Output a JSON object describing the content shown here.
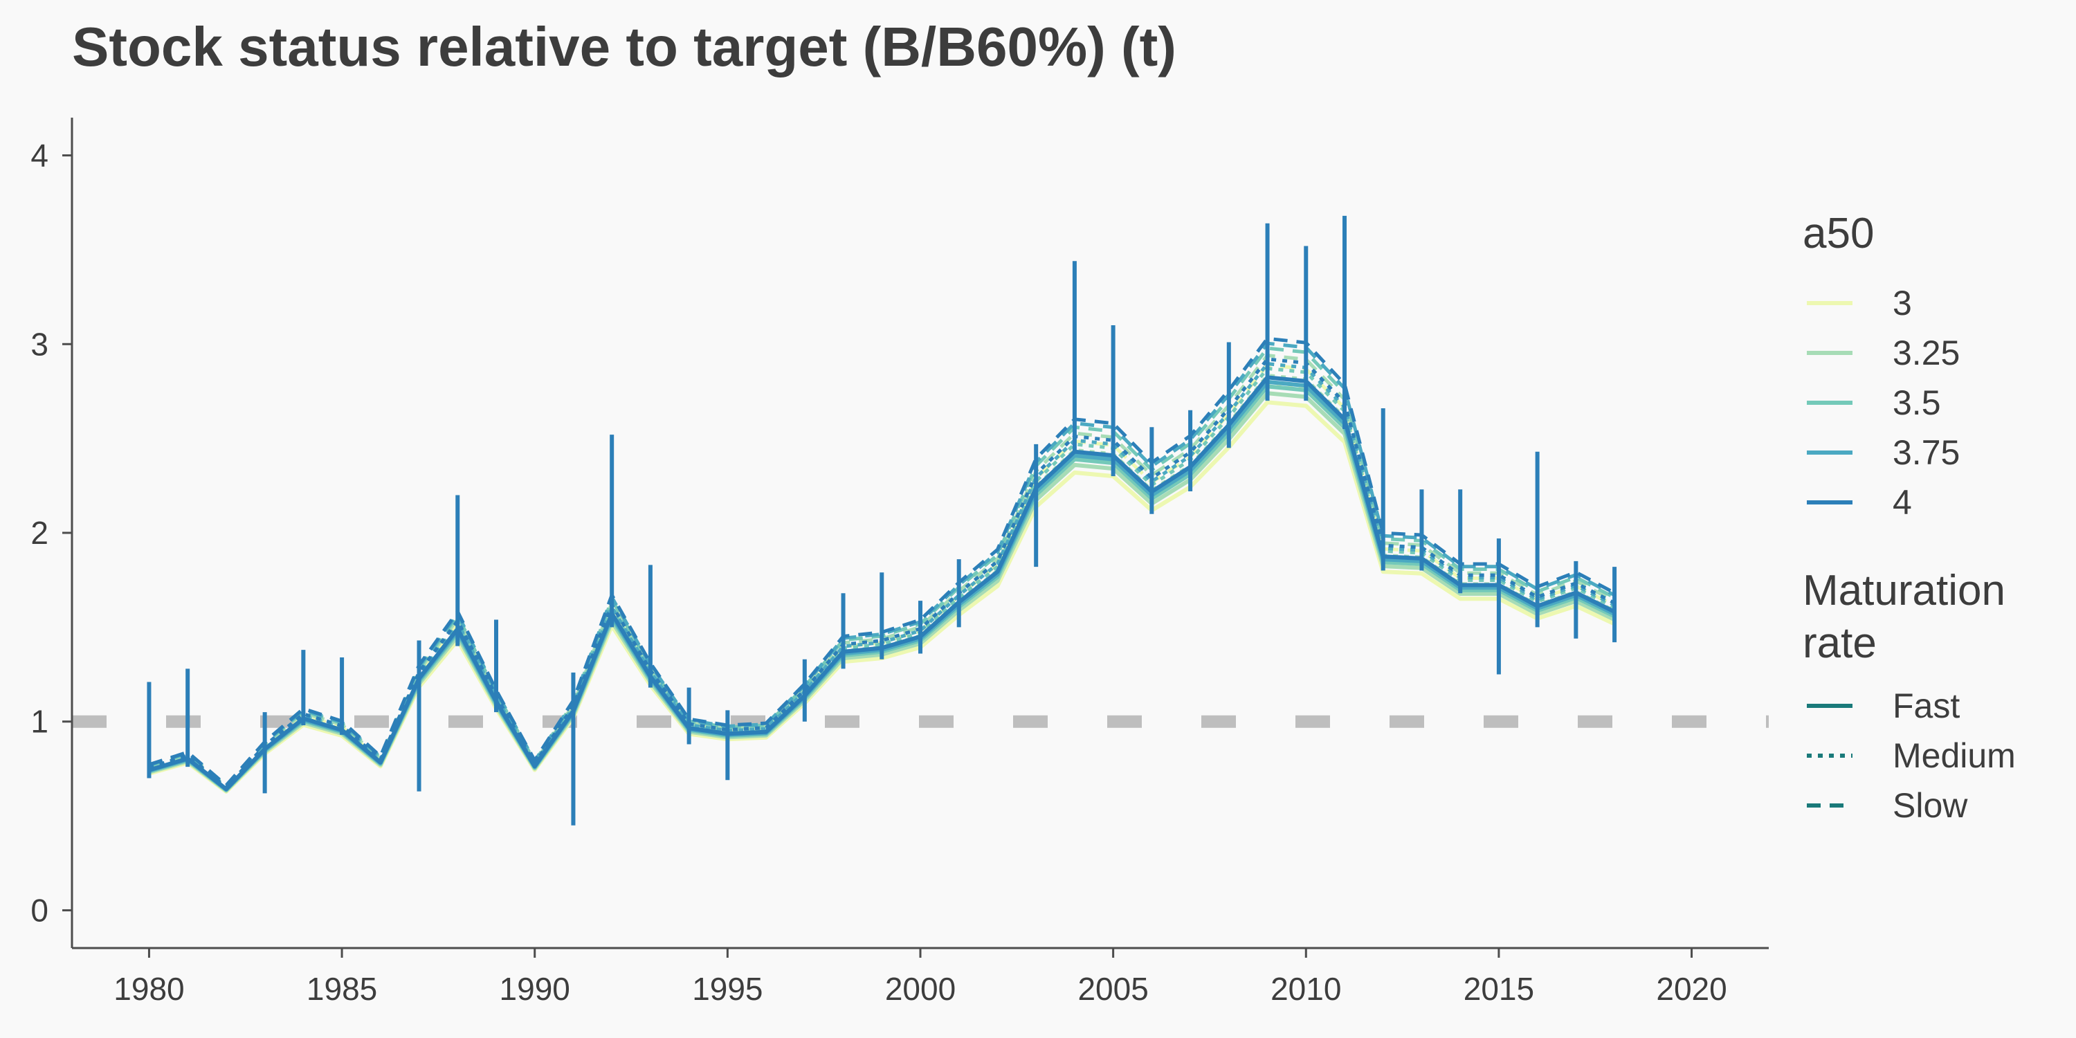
{
  "chart_data": {
    "type": "line",
    "title": "Stock status relative to target (B/B60%) (t)",
    "xlabel": "",
    "ylabel": "",
    "xlim": [
      1978,
      2022
    ],
    "ylim": [
      -0.2,
      4.2
    ],
    "x_ticks": [
      1980,
      1985,
      1990,
      1995,
      2000,
      2005,
      2010,
      2015,
      2020
    ],
    "y_ticks": [
      0,
      1,
      2,
      3,
      4
    ],
    "grid": false,
    "legend_position": "right",
    "reference_line": {
      "y": 1,
      "style": "dashed",
      "color": "#bebebe"
    },
    "x": [
      1980,
      1981,
      1982,
      1983,
      1984,
      1985,
      1986,
      1987,
      1988,
      1989,
      1990,
      1991,
      1992,
      1993,
      1994,
      1995,
      1996,
      1997,
      1998,
      1999,
      2000,
      2001,
      2002,
      2003,
      2004,
      2005,
      2006,
      2007,
      2008,
      2009,
      2010,
      2011,
      2012,
      2013,
      2014,
      2015,
      2016,
      2017,
      2018
    ],
    "base": [
      0.74,
      0.8,
      0.64,
      0.85,
      1.01,
      0.95,
      0.78,
      1.22,
      1.48,
      1.1,
      0.76,
      1.05,
      1.56,
      1.23,
      0.96,
      0.93,
      0.94,
      1.13,
      1.36,
      1.38,
      1.44,
      1.62,
      1.78,
      2.22,
      2.41,
      2.39,
      2.2,
      2.33,
      2.55,
      2.8,
      2.78,
      2.58,
      1.86,
      1.85,
      1.71,
      1.71,
      1.6,
      1.67,
      1.57
    ],
    "spikes": [
      {
        "x": 1980,
        "low": 0.7,
        "high": 1.21
      },
      {
        "x": 1981,
        "low": 0.76,
        "high": 1.28
      },
      {
        "x": 1983,
        "low": 0.62,
        "high": 1.05
      },
      {
        "x": 1984,
        "low": 0.98,
        "high": 1.38
      },
      {
        "x": 1985,
        "low": 0.93,
        "high": 1.34
      },
      {
        "x": 1987,
        "low": 0.63,
        "high": 1.43
      },
      {
        "x": 1988,
        "low": 1.4,
        "high": 2.2
      },
      {
        "x": 1989,
        "low": 1.05,
        "high": 1.54
      },
      {
        "x": 1991,
        "low": 0.45,
        "high": 1.26
      },
      {
        "x": 1992,
        "low": 1.5,
        "high": 2.52
      },
      {
        "x": 1993,
        "low": 1.18,
        "high": 1.83
      },
      {
        "x": 1994,
        "low": 0.88,
        "high": 1.18
      },
      {
        "x": 1995,
        "low": 0.69,
        "high": 1.06
      },
      {
        "x": 1997,
        "low": 1.0,
        "high": 1.33
      },
      {
        "x": 1998,
        "low": 1.28,
        "high": 1.68
      },
      {
        "x": 1999,
        "low": 1.33,
        "high": 1.79
      },
      {
        "x": 2000,
        "low": 1.36,
        "high": 1.64
      },
      {
        "x": 2001,
        "low": 1.5,
        "high": 1.86
      },
      {
        "x": 2003,
        "low": 1.82,
        "high": 2.47
      },
      {
        "x": 2004,
        "low": 2.42,
        "high": 3.44
      },
      {
        "x": 2005,
        "low": 2.3,
        "high": 3.1
      },
      {
        "x": 2006,
        "low": 2.1,
        "high": 2.56
      },
      {
        "x": 2007,
        "low": 2.22,
        "high": 2.65
      },
      {
        "x": 2008,
        "low": 2.45,
        "high": 3.01
      },
      {
        "x": 2009,
        "low": 2.7,
        "high": 3.64
      },
      {
        "x": 2010,
        "low": 2.7,
        "high": 3.52
      },
      {
        "x": 2011,
        "low": 2.55,
        "high": 3.68
      },
      {
        "x": 2012,
        "low": 1.8,
        "high": 2.66
      },
      {
        "x": 2013,
        "low": 1.8,
        "high": 2.23
      },
      {
        "x": 2014,
        "low": 1.68,
        "high": 2.23
      },
      {
        "x": 2015,
        "low": 1.25,
        "high": 1.97
      },
      {
        "x": 2016,
        "low": 1.5,
        "high": 2.43
      },
      {
        "x": 2017,
        "low": 1.44,
        "high": 1.85
      },
      {
        "x": 2018,
        "low": 1.42,
        "high": 1.82
      }
    ],
    "a50_levels": [
      {
        "value": "3",
        "color": "#edf8b1",
        "scale": 0.955
      },
      {
        "value": "3.25",
        "color": "#a7dcb6",
        "scale": 0.975
      },
      {
        "value": "3.5",
        "color": "#74c9b9",
        "scale": 0.99
      },
      {
        "value": "3.75",
        "color": "#4ba9c2",
        "scale": 1.0
      },
      {
        "value": "4",
        "color": "#2c7fb8",
        "scale": 1.01
      }
    ],
    "maturation_rates": [
      {
        "name": "Fast",
        "dash": "solid",
        "scale": 1.0
      },
      {
        "name": "Medium",
        "dash": "dotted",
        "scale": 1.04
      },
      {
        "name": "Slow",
        "dash": "dashed",
        "scale": 1.085
      }
    ]
  },
  "legend": {
    "a50_title": "a50",
    "a50_items": [
      "3",
      "3.25",
      "3.5",
      "3.75",
      "4"
    ],
    "a50_colors": [
      "#edf8b1",
      "#a7dcb6",
      "#74c9b9",
      "#4ba9c2",
      "#2c7fb8"
    ],
    "maturation_title": "Maturation\nrate",
    "maturation_items": [
      "Fast",
      "Medium",
      "Slow"
    ],
    "maturation_color": "#1a7a7a"
  }
}
